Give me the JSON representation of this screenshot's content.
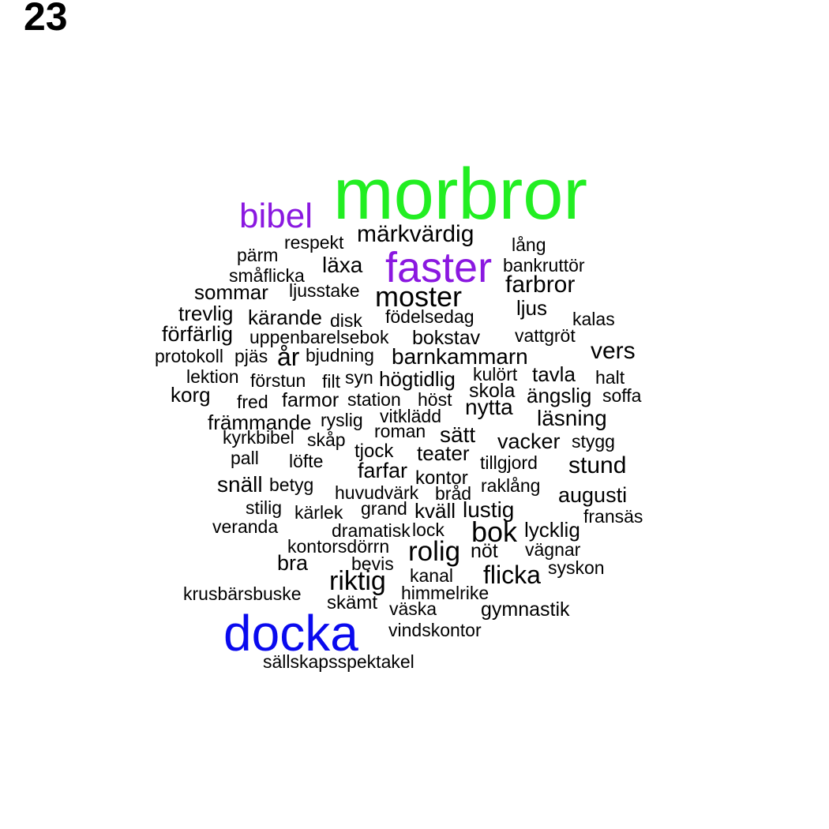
{
  "page_number": "23",
  "colors": {
    "background": "#ffffff",
    "default_word": "#000000",
    "green": "#22ee22",
    "purple": "#8a18e0",
    "blue": "#0a0aee"
  },
  "words": [
    {
      "text": "morbror",
      "color": "#22ee22"
    },
    {
      "text": "bibel",
      "color": "#8a18e0"
    },
    {
      "text": "faster",
      "color": "#8a18e0"
    },
    {
      "text": "docka",
      "color": "#0a0aee"
    },
    {
      "text": "märkvärdig"
    },
    {
      "text": "respekt"
    },
    {
      "text": "lång"
    },
    {
      "text": "pärm"
    },
    {
      "text": "läxa"
    },
    {
      "text": "bankruttör"
    },
    {
      "text": "småflicka"
    },
    {
      "text": "farbror"
    },
    {
      "text": "sommar"
    },
    {
      "text": "ljusstake"
    },
    {
      "text": "moster"
    },
    {
      "text": "ljus"
    },
    {
      "text": "trevlig"
    },
    {
      "text": "kärande"
    },
    {
      "text": "disk"
    },
    {
      "text": "födelsedag"
    },
    {
      "text": "kalas"
    },
    {
      "text": "förfärlig"
    },
    {
      "text": "uppenbarelsebok"
    },
    {
      "text": "bokstav"
    },
    {
      "text": "vattgröt"
    },
    {
      "text": "vers"
    },
    {
      "text": "protokoll"
    },
    {
      "text": "pjäs"
    },
    {
      "text": "år"
    },
    {
      "text": "bjudning"
    },
    {
      "text": "barnkammarn"
    },
    {
      "text": "lektion"
    },
    {
      "text": "förstun"
    },
    {
      "text": "filt"
    },
    {
      "text": "syn"
    },
    {
      "text": "högtidlig"
    },
    {
      "text": "kulört"
    },
    {
      "text": "tavla"
    },
    {
      "text": "halt"
    },
    {
      "text": "korg"
    },
    {
      "text": "skola"
    },
    {
      "text": "ängslig"
    },
    {
      "text": "soffa"
    },
    {
      "text": "fred"
    },
    {
      "text": "farmor"
    },
    {
      "text": "station"
    },
    {
      "text": "höst"
    },
    {
      "text": "nytta"
    },
    {
      "text": "vitklädd"
    },
    {
      "text": "läsning"
    },
    {
      "text": "främmande"
    },
    {
      "text": "ryslig"
    },
    {
      "text": "roman"
    },
    {
      "text": "sätt"
    },
    {
      "text": "kyrkbibel"
    },
    {
      "text": "skåp"
    },
    {
      "text": "vacker"
    },
    {
      "text": "stygg"
    },
    {
      "text": "pall"
    },
    {
      "text": "löfte"
    },
    {
      "text": "tjock"
    },
    {
      "text": "teater"
    },
    {
      "text": "tillgjord"
    },
    {
      "text": "stund"
    },
    {
      "text": "farfar"
    },
    {
      "text": "kontor"
    },
    {
      "text": "snäll"
    },
    {
      "text": "betyg"
    },
    {
      "text": "huvudvärk"
    },
    {
      "text": "bråd"
    },
    {
      "text": "raklång"
    },
    {
      "text": "augusti"
    },
    {
      "text": "stilig"
    },
    {
      "text": "kärlek"
    },
    {
      "text": "grand"
    },
    {
      "text": "kväll"
    },
    {
      "text": "lustig"
    },
    {
      "text": "fransäs"
    },
    {
      "text": "veranda"
    },
    {
      "text": "dramatisk"
    },
    {
      "text": "lock"
    },
    {
      "text": "bok"
    },
    {
      "text": "lycklig"
    },
    {
      "text": "kontorsdörrn"
    },
    {
      "text": "rolig"
    },
    {
      "text": "nöt"
    },
    {
      "text": "vägnar"
    },
    {
      "text": "bra"
    },
    {
      "text": "bevis"
    },
    {
      "text": "kanal"
    },
    {
      "text": "flicka"
    },
    {
      "text": "syskon"
    },
    {
      "text": "riktig"
    },
    {
      "text": "krusbärsbuske"
    },
    {
      "text": "himmelrike"
    },
    {
      "text": "skämt"
    },
    {
      "text": "väska"
    },
    {
      "text": "gymnastik"
    },
    {
      "text": "vindskontor"
    },
    {
      "text": "sällskapsspektakel"
    }
  ]
}
